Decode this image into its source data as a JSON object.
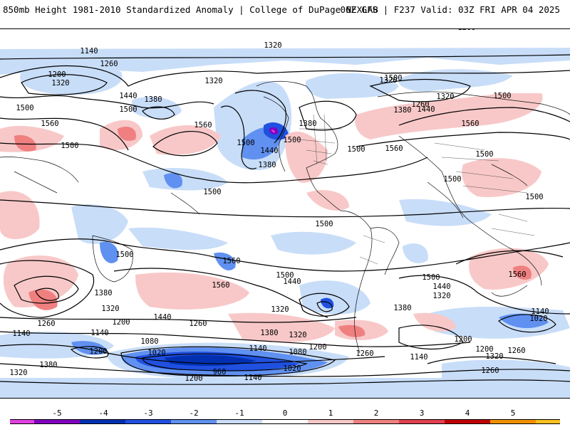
{
  "header": {
    "left_title": "850mb Height 1981-2010 Standardized Anomaly | College of DuPage NEXLAB",
    "right_title": "06Z GFS | F237 Valid: 03Z FRI APR 04 2025"
  },
  "colorbar": {
    "ticks": [
      "-5",
      "-4",
      "-3",
      "-2",
      "-1",
      "0",
      "1",
      "2",
      "3",
      "4",
      "5"
    ],
    "colors": [
      "#e040e0",
      "#8000c0",
      "#0030b0",
      "#2050e0",
      "#6090f0",
      "#c8ddf8",
      "#ffffff",
      "#f8c8c8",
      "#f08080",
      "#e04050",
      "#c00000",
      "#f09000",
      "#f8c020"
    ]
  },
  "map": {
    "contour_labels": [
      {
        "text": "1260"
      },
      {
        "text": "1320"
      },
      {
        "text": "1140"
      },
      {
        "text": "1260"
      },
      {
        "text": "1200"
      },
      {
        "text": "1320"
      },
      {
        "text": "1440"
      },
      {
        "text": "1500"
      },
      {
        "text": "1380"
      },
      {
        "text": "1560"
      },
      {
        "text": "1500"
      },
      {
        "text": "1560"
      },
      {
        "text": "1500"
      },
      {
        "text": "1500"
      },
      {
        "text": "1380"
      },
      {
        "text": "1440"
      },
      {
        "text": "1320"
      },
      {
        "text": "1380"
      },
      {
        "text": "1500"
      },
      {
        "text": "1500"
      },
      {
        "text": "1500"
      },
      {
        "text": "1380"
      },
      {
        "text": "1440"
      },
      {
        "text": "1560"
      },
      {
        "text": "1320"
      },
      {
        "text": "1260"
      },
      {
        "text": "1320"
      },
      {
        "text": "1500"
      },
      {
        "text": "1560"
      },
      {
        "text": "1500"
      },
      {
        "text": "1500"
      },
      {
        "text": "1500"
      },
      {
        "text": "1500"
      },
      {
        "text": "1500"
      },
      {
        "text": "1500"
      },
      {
        "text": "1560"
      },
      {
        "text": "1500"
      },
      {
        "text": "1440"
      },
      {
        "text": "1560"
      },
      {
        "text": "1380"
      },
      {
        "text": "1320"
      },
      {
        "text": "1200"
      },
      {
        "text": "1260"
      },
      {
        "text": "1440"
      },
      {
        "text": "1260"
      },
      {
        "text": "1320"
      },
      {
        "text": "1380"
      },
      {
        "text": "1380"
      },
      {
        "text": "1320"
      },
      {
        "text": "1140"
      },
      {
        "text": "1140"
      },
      {
        "text": "1200"
      },
      {
        "text": "1080"
      },
      {
        "text": "1020"
      },
      {
        "text": "1140"
      },
      {
        "text": "1200"
      },
      {
        "text": "1080"
      },
      {
        "text": "1260"
      },
      {
        "text": "1380"
      },
      {
        "text": "1320"
      },
      {
        "text": "960"
      },
      {
        "text": "1200"
      },
      {
        "text": "1140"
      },
      {
        "text": "1020"
      },
      {
        "text": "1500"
      },
      {
        "text": "1440"
      },
      {
        "text": "1320"
      },
      {
        "text": "1560"
      },
      {
        "text": "1140"
      },
      {
        "text": "1020"
      },
      {
        "text": "1200"
      },
      {
        "text": "1260"
      },
      {
        "text": "1320"
      },
      {
        "text": "1140"
      },
      {
        "text": "1200"
      },
      {
        "text": "1260"
      }
    ]
  }
}
